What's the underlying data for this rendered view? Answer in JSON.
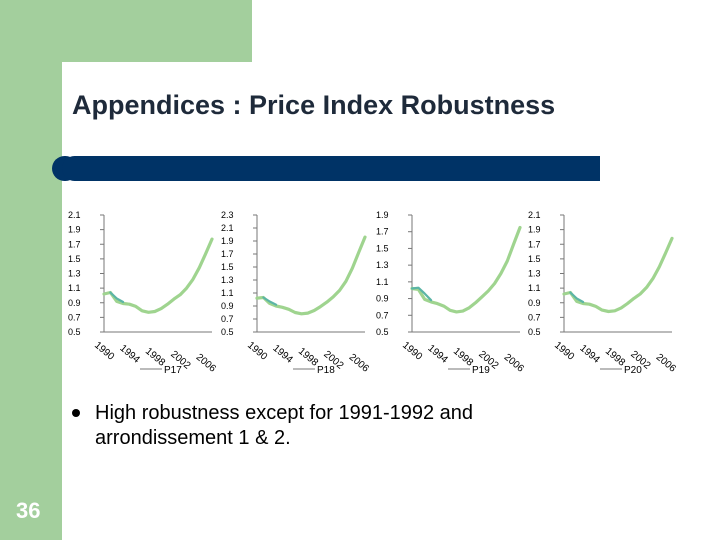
{
  "slide": {
    "title": "Appendices : Price Index Robustness",
    "page_number": "36",
    "bullet": "High robustness except for 1991-1992 and arrondissement 1 & 2."
  },
  "colors": {
    "deco_green": "#a3cf9d",
    "bar_navy": "#003366",
    "series_main": "#9fd48f",
    "series_alt": "#5bb5a6",
    "axis": "#777777"
  },
  "chart_data": [
    {
      "type": "line",
      "x": [
        1990,
        1991,
        1992,
        1993,
        1994,
        1995,
        1996,
        1997,
        1998,
        1999,
        2000,
        2001,
        2002,
        2003,
        2004,
        2005,
        2006,
        2007
      ],
      "xticks": [
        "1990",
        "1994",
        "1998",
        "2002",
        "2006"
      ],
      "yticks": [
        "2.1",
        "1.9",
        "1.7",
        "1.5",
        "1.3",
        "1.1",
        "0.9",
        "0.7",
        "0.5"
      ],
      "ylim": [
        0.5,
        2.1
      ],
      "series": [
        {
          "name": "P17",
          "values": [
            1.02,
            1.04,
            0.92,
            0.89,
            0.88,
            0.85,
            0.79,
            0.77,
            0.78,
            0.82,
            0.88,
            0.95,
            1.01,
            1.1,
            1.22,
            1.38,
            1.57,
            1.77
          ]
        },
        {
          "name": "",
          "values": [
            null,
            1.04,
            0.96,
            0.91,
            null,
            null,
            null,
            null,
            null,
            null,
            null,
            null,
            null,
            null,
            null,
            null,
            null,
            null
          ]
        }
      ]
    },
    {
      "type": "line",
      "x": [
        1990,
        1991,
        1992,
        1993,
        1994,
        1995,
        1996,
        1997,
        1998,
        1999,
        2000,
        2001,
        2002,
        2003,
        2004,
        2005,
        2006,
        2007
      ],
      "xticks": [
        "1990",
        "1994",
        "1998",
        "2002",
        "2006"
      ],
      "yticks": [
        "2.3",
        "2.1",
        "1.9",
        "1.7",
        "1.5",
        "1.3",
        "1.1",
        "0.9",
        "0.7",
        "0.5"
      ],
      "ylim": [
        0.5,
        2.3
      ],
      "series": [
        {
          "name": "P18",
          "values": [
            1.02,
            1.03,
            0.94,
            0.9,
            0.88,
            0.85,
            0.8,
            0.78,
            0.79,
            0.83,
            0.89,
            0.96,
            1.04,
            1.14,
            1.28,
            1.48,
            1.72,
            1.96
          ]
        },
        {
          "name": "",
          "values": [
            null,
            1.03,
            0.97,
            0.92,
            null,
            null,
            null,
            null,
            null,
            null,
            null,
            null,
            null,
            null,
            null,
            null,
            null,
            null
          ]
        }
      ]
    },
    {
      "type": "line",
      "x": [
        1990,
        1991,
        1992,
        1993,
        1994,
        1995,
        1996,
        1997,
        1998,
        1999,
        2000,
        2001,
        2002,
        2003,
        2004,
        2005,
        2006,
        2007
      ],
      "xticks": [
        "1990",
        "1994",
        "1998",
        "2002",
        "2006"
      ],
      "yticks": [
        "1.9",
        "1.7",
        "1.5",
        "1.3",
        "1.1",
        "0.9",
        "0.7",
        "0.5"
      ],
      "ylim": [
        0.5,
        1.9
      ],
      "series": [
        {
          "name": "P19",
          "values": [
            1.02,
            1.01,
            0.89,
            0.86,
            0.84,
            0.81,
            0.76,
            0.74,
            0.75,
            0.79,
            0.85,
            0.92,
            0.99,
            1.08,
            1.2,
            1.35,
            1.55,
            1.75
          ]
        },
        {
          "name": "",
          "values": [
            1.02,
            1.03,
            0.96,
            0.88,
            null,
            null,
            null,
            null,
            null,
            null,
            null,
            null,
            null,
            null,
            null,
            null,
            null,
            null
          ]
        }
      ]
    },
    {
      "type": "line",
      "x": [
        1990,
        1991,
        1992,
        1993,
        1994,
        1995,
        1996,
        1997,
        1998,
        1999,
        2000,
        2001,
        2002,
        2003,
        2004,
        2005,
        2006,
        2007
      ],
      "xticks": [
        "1990",
        "1994",
        "1998",
        "2002",
        "2006"
      ],
      "yticks": [
        "2.1",
        "1.9",
        "1.7",
        "1.5",
        "1.3",
        "1.1",
        "0.9",
        "0.7",
        "0.5"
      ],
      "ylim": [
        0.5,
        2.1
      ],
      "series": [
        {
          "name": "P20",
          "values": [
            1.02,
            1.04,
            0.92,
            0.89,
            0.88,
            0.85,
            0.8,
            0.78,
            0.79,
            0.83,
            0.89,
            0.96,
            1.02,
            1.11,
            1.23,
            1.39,
            1.58,
            1.78
          ]
        },
        {
          "name": "",
          "values": [
            null,
            1.04,
            0.96,
            0.91,
            null,
            null,
            null,
            null,
            null,
            null,
            null,
            null,
            null,
            null,
            null,
            null,
            null,
            null
          ]
        }
      ]
    }
  ]
}
